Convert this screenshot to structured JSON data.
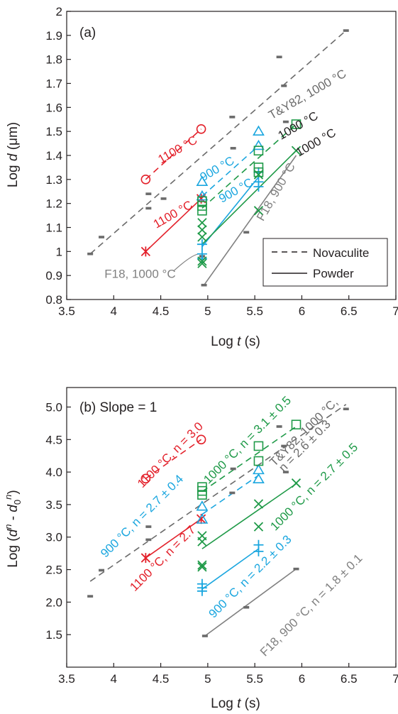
{
  "colors": {
    "red": "#e3202a",
    "blue": "#1aa6df",
    "green": "#1f9a48",
    "gray": "#808080",
    "dark_gray": "#6b6b6b",
    "black": "#231f20"
  },
  "legend": {
    "dashed_label": "Novaculite",
    "solid_label": "Powder",
    "placement": "bottom-right of panel (a)"
  },
  "chart_data": [
    {
      "type": "scatter",
      "panel_label": "(a)",
      "title": "",
      "xlabel_text": "Log ",
      "xlabel_italic": "t",
      "xlabel_unit": " (s)",
      "ylabel_text": "Log ",
      "ylabel_italic": "d",
      "ylabel_unit": " (μm)",
      "xlim": [
        3.5,
        7
      ],
      "ylim": [
        0.8,
        2
      ],
      "x_ticks": [
        3.5,
        4,
        4.5,
        5,
        5.5,
        6,
        6.5,
        7
      ],
      "x_tick_labels": [
        "3.5",
        "4",
        "4.5",
        "5",
        "5.5",
        "6",
        "6.5",
        "7"
      ],
      "y_ticks": [
        0.8,
        0.9,
        1.0,
        1.1,
        1.2,
        1.3,
        1.4,
        1.5,
        1.6,
        1.7,
        1.8,
        1.9,
        2.0
      ],
      "y_tick_labels": [
        "0.8",
        "0.9",
        "1",
        "1.1",
        "1.2",
        "1.3",
        "1.4",
        "1.5",
        "1.6",
        "1.7",
        "1.8",
        "1.9",
        "2"
      ],
      "grid": false,
      "series": [
        {
          "key": "ty82",
          "marker": "dash",
          "color": "dark_gray",
          "points": [
            [
              3.75,
              0.99
            ],
            [
              3.87,
              1.06
            ],
            [
              4.37,
              1.18
            ],
            [
              4.37,
              1.24
            ],
            [
              4.53,
              1.22
            ],
            [
              5.26,
              1.56
            ],
            [
              5.27,
              1.43
            ],
            [
              5.41,
              1.08
            ],
            [
              5.76,
              1.81
            ],
            [
              5.81,
              1.69
            ],
            [
              5.83,
              1.54
            ],
            [
              6.47,
              1.92
            ]
          ]
        },
        {
          "key": "f18_1000",
          "marker": "dash",
          "color": "dark_gray",
          "points": [
            [
              4.94,
              0.98
            ],
            [
              4.96,
              0.86
            ]
          ]
        },
        {
          "key": "nov1100",
          "marker": "circle",
          "color": "red",
          "points": [
            [
              4.34,
              1.3
            ],
            [
              4.93,
              1.51
            ]
          ]
        },
        {
          "key": "pow1100",
          "marker": "asterisk",
          "color": "red",
          "points": [
            [
              4.34,
              1.0
            ],
            [
              4.93,
              1.22
            ]
          ]
        },
        {
          "key": "nov900",
          "marker": "triangle",
          "color": "blue",
          "points": [
            [
              4.94,
              1.29
            ],
            [
              4.94,
              1.23
            ],
            [
              5.54,
              1.5
            ],
            [
              5.54,
              1.44
            ]
          ]
        },
        {
          "key": "pow900",
          "marker": "plus",
          "color": "blue",
          "points": [
            [
              4.94,
              1.03
            ],
            [
              4.94,
              0.99
            ],
            [
              4.94,
              0.97
            ],
            [
              5.54,
              1.33
            ],
            [
              5.54,
              1.29
            ],
            [
              5.54,
              1.27
            ]
          ]
        },
        {
          "key": "nov1000",
          "marker": "square",
          "color": "green",
          "points": [
            [
              4.94,
              1.21
            ],
            [
              4.94,
              1.19
            ],
            [
              4.94,
              1.17
            ],
            [
              5.54,
              1.42
            ],
            [
              5.54,
              1.35
            ],
            [
              5.54,
              1.33
            ],
            [
              5.94,
              1.53
            ]
          ]
        },
        {
          "key": "pow1000",
          "marker": "cross",
          "color": "green",
          "points": [
            [
              4.94,
              1.12
            ],
            [
              4.94,
              1.09
            ],
            [
              4.94,
              1.06
            ],
            [
              4.94,
              0.96
            ],
            [
              4.94,
              0.95
            ],
            [
              5.54,
              1.32
            ],
            [
              5.54,
              1.17
            ],
            [
              5.94,
              1.42
            ]
          ]
        }
      ],
      "lines": [
        {
          "color": "dark_gray",
          "style": "dashed",
          "x": [
            3.75,
            6.47
          ],
          "y": [
            0.99,
            1.92
          ]
        },
        {
          "color": "gray",
          "style": "solid",
          "x": [
            4.96,
            5.94
          ],
          "y": [
            0.86,
            1.4
          ]
        },
        {
          "color": "red",
          "style": "dashed",
          "x": [
            4.34,
            4.93
          ],
          "y": [
            1.3,
            1.51
          ]
        },
        {
          "color": "red",
          "style": "solid",
          "x": [
            4.34,
            4.93
          ],
          "y": [
            1.0,
            1.22
          ]
        },
        {
          "color": "blue",
          "style": "dashed",
          "x": [
            4.94,
            5.54
          ],
          "y": [
            1.23,
            1.44
          ]
        },
        {
          "color": "blue",
          "style": "solid",
          "x": [
            4.94,
            5.54
          ],
          "y": [
            1.02,
            1.31
          ]
        },
        {
          "color": "green",
          "style": "dashed",
          "x": [
            4.94,
            5.94
          ],
          "y": [
            1.18,
            1.53
          ]
        },
        {
          "color": "green",
          "style": "solid",
          "x": [
            4.94,
            5.94
          ],
          "y": [
            1.03,
            1.42
          ]
        }
      ],
      "annotations": [
        {
          "text": "T&Y82, 1000 °C",
          "color": "dark_gray",
          "x": 6.08,
          "y": 1.64,
          "angle": -30
        },
        {
          "text": "1100 °C",
          "color": "red",
          "x": 4.7,
          "y": 1.41,
          "angle": -30
        },
        {
          "text": "900 °C",
          "color": "blue",
          "x": 5.12,
          "y": 1.33,
          "angle": -30
        },
        {
          "text": "1000 °C",
          "color": "black",
          "x": 5.98,
          "y": 1.51,
          "angle": -30
        },
        {
          "text": "1100 °C",
          "color": "red",
          "x": 4.65,
          "y": 1.14,
          "angle": -30
        },
        {
          "text": "900 °C",
          "color": "blue",
          "x": 5.32,
          "y": 1.24,
          "angle": -30
        },
        {
          "text": "1000 °C",
          "color": "black",
          "x": 6.17,
          "y": 1.44,
          "angle": -30
        },
        {
          "text": "F18, 900 °C",
          "color": "gray",
          "x": 5.76,
          "y": 1.24,
          "angle": -60
        },
        {
          "text": "F18, 1000 °C",
          "color": "gray",
          "x": 4.28,
          "y": 0.89,
          "angle": 0
        }
      ],
      "leaders": [
        {
          "color": "gray",
          "x": [
            4.64,
            4.93
          ],
          "y": [
            0.92,
            0.99
          ]
        }
      ]
    },
    {
      "type": "scatter",
      "panel_label": "(b) Slope = 1",
      "title": "",
      "xlabel_text": "Log ",
      "xlabel_italic": "t",
      "xlabel_unit": " (s)",
      "ylabel_text": "Log (",
      "ylabel_italic": "d",
      "ylabel_sup": "n",
      "ylabel_mid": " - ",
      "ylabel_italic2": "d",
      "ylabel_sub2": "0",
      "ylabel_sup2": "n",
      "ylabel_end": ")",
      "xlim": [
        3.5,
        7
      ],
      "ylim": [
        1.0,
        5.3
      ],
      "x_ticks": [
        3.5,
        4,
        4.5,
        5,
        5.5,
        6,
        6.5,
        7
      ],
      "x_tick_labels": [
        "3.5",
        "4",
        "4.5",
        "5",
        "5.5",
        "6",
        "6.5",
        "7"
      ],
      "y_ticks": [
        1.5,
        2.0,
        2.5,
        3.0,
        3.5,
        4.0,
        4.5,
        5.0
      ],
      "y_tick_labels": [
        "1.5",
        "2.0",
        "2.5",
        "3.0",
        "3.5",
        "4.0",
        "4.5",
        "5.0"
      ],
      "grid": false,
      "series": [
        {
          "key": "ty82",
          "marker": "dash",
          "color": "dark_gray",
          "points": [
            [
              3.75,
              2.09
            ],
            [
              3.87,
              2.49
            ],
            [
              4.37,
              2.96
            ],
            [
              4.37,
              3.16
            ],
            [
              5.26,
              3.68
            ],
            [
              5.27,
              4.05
            ],
            [
              5.41,
              1.92
            ],
            [
              5.76,
              4.7
            ],
            [
              5.81,
              4.4
            ],
            [
              5.83,
              4.0
            ],
            [
              6.47,
              4.97
            ]
          ]
        },
        {
          "key": "f18_900",
          "marker": "dash",
          "color": "dark_gray",
          "points": [
            [
              4.97,
              1.48
            ],
            [
              5.94,
              2.51
            ]
          ]
        },
        {
          "key": "nov1100",
          "marker": "circle",
          "color": "red",
          "points": [
            [
              4.34,
              3.9
            ],
            [
              4.93,
              4.5
            ]
          ]
        },
        {
          "key": "pow1100",
          "marker": "asterisk",
          "color": "red",
          "points": [
            [
              4.34,
              2.68
            ],
            [
              4.93,
              3.28
            ]
          ]
        },
        {
          "key": "nov900",
          "marker": "triangle",
          "color": "blue",
          "points": [
            [
              4.94,
              3.47
            ],
            [
              4.94,
              3.27
            ],
            [
              5.54,
              4.03
            ],
            [
              5.54,
              3.89
            ]
          ]
        },
        {
          "key": "pow900",
          "marker": "plus",
          "color": "blue",
          "points": [
            [
              4.94,
              2.28
            ],
            [
              4.94,
              2.22
            ],
            [
              4.94,
              2.17
            ],
            [
              5.54,
              2.88
            ],
            [
              5.54,
              2.78
            ]
          ]
        },
        {
          "key": "nov1000",
          "marker": "square",
          "color": "green",
          "points": [
            [
              4.94,
              3.77
            ],
            [
              4.94,
              3.71
            ],
            [
              4.94,
              3.65
            ],
            [
              5.54,
              4.4
            ],
            [
              5.54,
              4.17
            ],
            [
              5.94,
              4.73
            ]
          ]
        },
        {
          "key": "pow1000",
          "marker": "cross",
          "color": "green",
          "points": [
            [
              4.94,
              3.02
            ],
            [
              4.94,
              2.93
            ],
            [
              4.94,
              2.57
            ],
            [
              4.94,
              2.54
            ],
            [
              5.54,
              3.51
            ],
            [
              5.54,
              3.16
            ],
            [
              5.94,
              3.83
            ]
          ]
        }
      ],
      "lines": [
        {
          "color": "dark_gray",
          "style": "dashed",
          "x": [
            3.75,
            6.47
          ],
          "y": [
            2.32,
            5.04
          ]
        },
        {
          "color": "gray",
          "style": "solid",
          "x": [
            4.97,
            5.94
          ],
          "y": [
            1.48,
            2.51
          ]
        },
        {
          "color": "red",
          "style": "dashed",
          "x": [
            4.34,
            4.93
          ],
          "y": [
            3.9,
            4.5
          ]
        },
        {
          "color": "red",
          "style": "solid",
          "x": [
            4.34,
            4.93
          ],
          "y": [
            2.68,
            3.28
          ]
        },
        {
          "color": "blue",
          "style": "dashed",
          "x": [
            4.94,
            5.54
          ],
          "y": [
            3.35,
            3.95
          ]
        },
        {
          "color": "blue",
          "style": "solid",
          "x": [
            4.94,
            5.54
          ],
          "y": [
            2.2,
            2.82
          ]
        },
        {
          "color": "green",
          "style": "dashed",
          "x": [
            4.94,
            5.94
          ],
          "y": [
            3.7,
            4.7
          ]
        },
        {
          "color": "green",
          "style": "solid",
          "x": [
            4.94,
            5.94
          ],
          "y": [
            2.82,
            3.82
          ]
        }
      ],
      "annotations": [
        {
          "text": "1100 °C, n = 3.0",
          "color": "red",
          "x": 4.63,
          "y": 4.22,
          "angle": -45
        },
        {
          "text": "1000 °C, n = 3.1 ± 0.5",
          "color": "green",
          "x": 5.45,
          "y": 4.45,
          "angle": -45
        },
        {
          "text": "T&Y82, 1000 °C,",
          "color": "dark_gray",
          "x": 6.05,
          "y": 4.57,
          "angle": -45
        },
        {
          "text": "n = 2.6 ± 0.3",
          "color": "dark_gray",
          "x": 6.06,
          "y": 4.36,
          "angle": -45
        },
        {
          "text": "900 °C, n = 2.7 ± 0.4",
          "color": "blue",
          "x": 4.33,
          "y": 3.28,
          "angle": -45
        },
        {
          "text": "1000 °C, n = 2.7 ± 0.5",
          "color": "green",
          "x": 6.16,
          "y": 3.73,
          "angle": -45
        },
        {
          "text": "1100 °C, n = 2.7",
          "color": "red",
          "x": 4.55,
          "y": 2.63,
          "angle": -45
        },
        {
          "text": "900 °C, n = 2.2 ± 0.3",
          "color": "blue",
          "x": 5.48,
          "y": 2.35,
          "angle": -45
        },
        {
          "text": "F18, 900 °C, n = 1.8 ± 0.1",
          "color": "gray",
          "x": 6.13,
          "y": 1.91,
          "angle": -45
        }
      ],
      "leaders": []
    }
  ]
}
